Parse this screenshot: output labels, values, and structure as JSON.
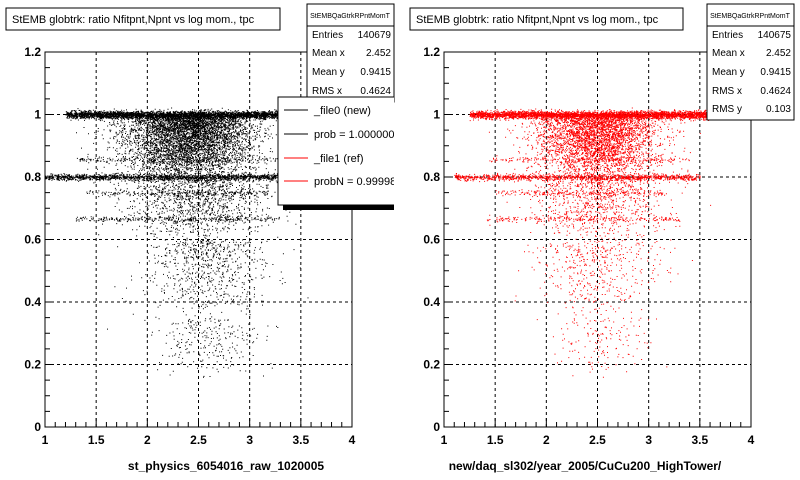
{
  "colors": {
    "left_points": "#000000",
    "right_points": "#ff0000",
    "background": "#ffffff"
  },
  "footer_text": "",
  "legend": {
    "entries": [
      {
        "label": "_file0 (new)",
        "color": "#000000"
      },
      {
        "label": "prob = 1.000000",
        "color": "#000000"
      },
      {
        "label": "_file1 (ref)",
        "color": "#ff0000"
      },
      {
        "label": "probN = 0.99998",
        "color": "#ff0000"
      }
    ]
  },
  "chart_data": [
    {
      "type": "scatter",
      "title": "StEMB globtrk: ratio Nfitpnt,Npnt vs log mom., tpc",
      "xlabel": "st_physics_6054016_raw_1020005",
      "ylabel": "",
      "xlim": [
        1,
        4
      ],
      "ylim": [
        0,
        1.2
      ],
      "xticks": [
        "1",
        "1.5",
        "2",
        "2.5",
        "3",
        "3.5",
        "4"
      ],
      "yticks": [
        "0",
        "0.2",
        "0.4",
        "0.6",
        "0.8",
        "1",
        "1.2"
      ],
      "grid": true,
      "color": "#000000",
      "stats": {
        "name": "StEMBQaGtrkRPntMomT",
        "rows": [
          {
            "label": "Entries",
            "value": "140679"
          },
          {
            "label": "Mean x",
            "value": "2.452"
          },
          {
            "label": "Mean y",
            "value": "0.9415"
          },
          {
            "label": "RMS x",
            "value": "0.4624"
          }
        ]
      },
      "density": {
        "bands": [
          {
            "y": 1.0,
            "x": [
              1.2,
              3.6
            ],
            "count": 3800,
            "spread": 0.006
          },
          {
            "y": 0.8,
            "x": [
              1.0,
              3.5
            ],
            "count": 1600,
            "spread": 0.005
          },
          {
            "y": 0.667,
            "x": [
              1.3,
              3.3
            ],
            "count": 260,
            "spread": 0.004
          },
          {
            "y": 0.75,
            "x": [
              1.4,
              3.2
            ],
            "count": 200,
            "spread": 0.004
          },
          {
            "y": 0.857,
            "x": [
              1.3,
              3.4
            ],
            "count": 220,
            "spread": 0.004
          }
        ],
        "bulk": [
          {
            "x_mean": 2.4,
            "x_sd": 0.32,
            "y": [
              0.8,
              1.0
            ],
            "count": 5000
          },
          {
            "x_mean": 2.5,
            "x_sd": 0.35,
            "y": [
              0.6,
              0.8
            ],
            "count": 1200
          },
          {
            "x_mean": 2.55,
            "x_sd": 0.3,
            "y": [
              0.35,
              0.6
            ],
            "count": 700
          },
          {
            "x_mean": 2.6,
            "x_sd": 0.25,
            "y": [
              0.15,
              0.35
            ],
            "count": 250
          }
        ]
      }
    },
    {
      "type": "scatter",
      "title": "StEMB globtrk: ratio Nfitpnt,Npnt vs log mom., tpc",
      "xlabel": "new/daq_sl302/year_2005/CuCu200_HighTower/",
      "ylabel": "",
      "xlim": [
        1,
        4
      ],
      "ylim": [
        0,
        1.2
      ],
      "xticks": [
        "1",
        "1.5",
        "2",
        "2.5",
        "3",
        "3.5",
        "4"
      ],
      "yticks": [
        "0",
        "0.2",
        "0.4",
        "0.6",
        "0.8",
        "1",
        "1.2"
      ],
      "grid": true,
      "color": "#ff0000",
      "stats": {
        "name": "StEMBQaGtrkRPntMomT",
        "rows": [
          {
            "label": "Entries",
            "value": "140675"
          },
          {
            "label": "Mean x",
            "value": "2.452"
          },
          {
            "label": "Mean y",
            "value": "0.9415"
          },
          {
            "label": "RMS x",
            "value": "0.4624"
          },
          {
            "label": "RMS y",
            "value": "0.103"
          }
        ]
      },
      "density": {
        "bands": [
          {
            "y": 1.0,
            "x": [
              1.25,
              3.6
            ],
            "count": 3600,
            "spread": 0.006
          },
          {
            "y": 0.8,
            "x": [
              1.1,
              3.5
            ],
            "count": 1100,
            "spread": 0.005
          },
          {
            "y": 0.667,
            "x": [
              1.4,
              3.3
            ],
            "count": 200,
            "spread": 0.004
          },
          {
            "y": 0.75,
            "x": [
              1.5,
              3.2
            ],
            "count": 160,
            "spread": 0.004
          },
          {
            "y": 0.857,
            "x": [
              1.4,
              3.4
            ],
            "count": 160,
            "spread": 0.004
          }
        ],
        "bulk": [
          {
            "x_mean": 2.5,
            "x_sd": 0.3,
            "y": [
              0.8,
              1.0
            ],
            "count": 3600
          },
          {
            "x_mean": 2.5,
            "x_sd": 0.33,
            "y": [
              0.6,
              0.8
            ],
            "count": 900
          },
          {
            "x_mean": 2.5,
            "x_sd": 0.3,
            "y": [
              0.35,
              0.6
            ],
            "count": 450
          },
          {
            "x_mean": 2.55,
            "x_sd": 0.25,
            "y": [
              0.15,
              0.35
            ],
            "count": 150
          }
        ]
      }
    }
  ]
}
